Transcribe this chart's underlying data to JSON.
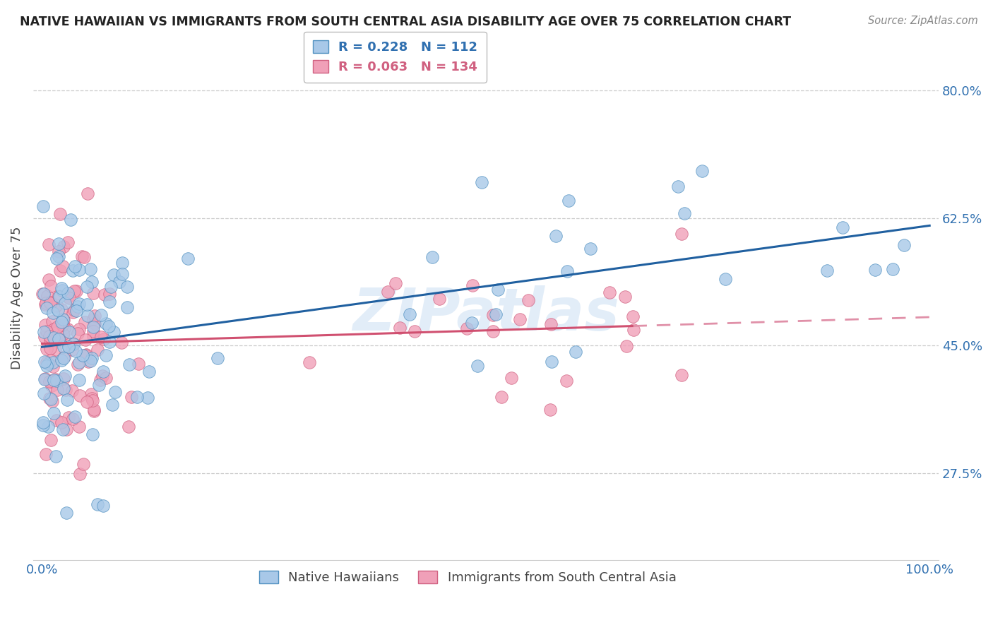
{
  "title": "NATIVE HAWAIIAN VS IMMIGRANTS FROM SOUTH CENTRAL ASIA DISABILITY AGE OVER 75 CORRELATION CHART",
  "source": "Source: ZipAtlas.com",
  "ylabel": "Disability Age Over 75",
  "legend_entry1_r": "R = 0.228",
  "legend_entry1_n": "N = 112",
  "legend_entry2_r": "R = 0.063",
  "legend_entry2_n": "N = 134",
  "yticks": [
    0.275,
    0.45,
    0.625,
    0.8
  ],
  "ytick_labels": [
    "27.5%",
    "45.0%",
    "62.5%",
    "80.0%"
  ],
  "blue_fill": "#a8c8e8",
  "blue_edge": "#5090c0",
  "pink_fill": "#f0a0b8",
  "pink_edge": "#d06080",
  "blue_line": "#2060a0",
  "pink_line_solid": "#d05070",
  "pink_line_dash": "#e090a8",
  "watermark": "ZIPatlas",
  "blue_seed": 7,
  "pink_seed": 13
}
